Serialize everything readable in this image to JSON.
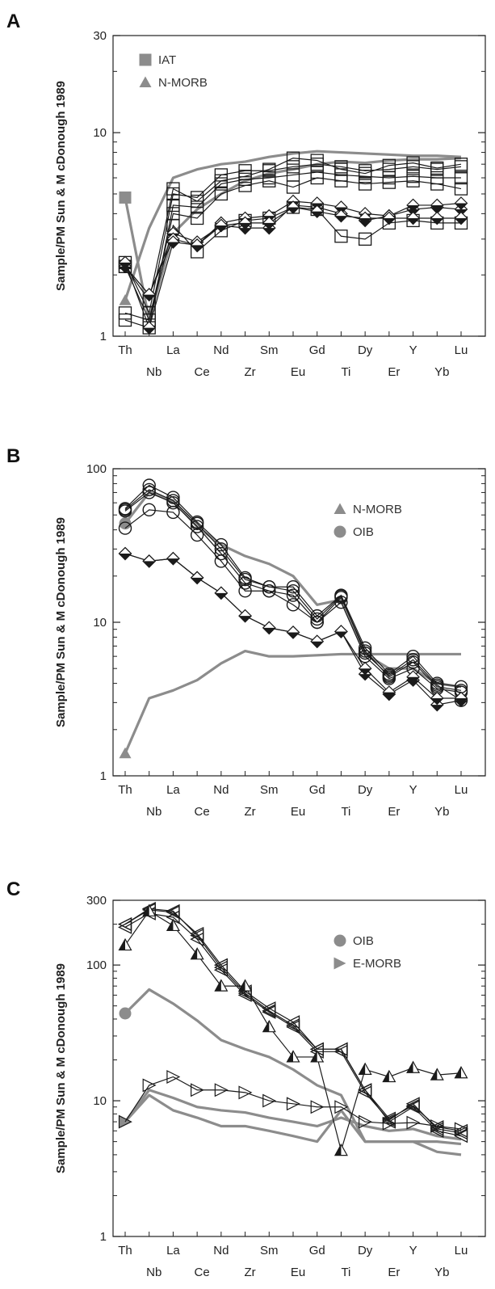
{
  "figure": {
    "panel_letters": [
      "A",
      "B",
      "C"
    ],
    "ylabel": "Sample/PM  Sun &  M cDonough 1989"
  },
  "chart_data": [
    {
      "panel": "A",
      "type": "line",
      "yscale": "log",
      "ylim": [
        1,
        30
      ],
      "yticks": [
        1,
        10,
        30
      ],
      "ytick_labels": [
        "1",
        "10",
        "30"
      ],
      "categories": [
        "Th",
        "Nb",
        "La",
        "Ce",
        "Nd",
        "Zr",
        "Sm",
        "Eu",
        "Gd",
        "Ti",
        "Dy",
        "Er",
        "Y",
        "Yb",
        "Lu"
      ],
      "ylabel": "Sample/PM  Sun &  M cDonough 1989",
      "legend": [
        {
          "label": "IAT",
          "marker": "square"
        },
        {
          "label": "N-MORB",
          "marker": "triangle"
        }
      ],
      "legend_position": "top-left",
      "reference": [
        {
          "name": "IAT",
          "marker": "square",
          "color": "#8c8c8c",
          "values": [
            4.8,
            1.2,
            3.2,
            4.2,
            5.0,
            5.8,
            6.3,
            6.6,
            7.0,
            7.2,
            7.1,
            7.3,
            7.4,
            7.4,
            7.5
          ]
        },
        {
          "name": "N-MORB",
          "marker": "triangle",
          "color": "#8c8c8c",
          "values": [
            1.5,
            3.4,
            6.0,
            6.6,
            7.0,
            7.2,
            7.6,
            7.9,
            8.1,
            8.0,
            7.9,
            7.8,
            7.7,
            7.7,
            7.6
          ]
        }
      ],
      "samples": [
        {
          "marker": "open-square",
          "values": [
            1.2,
            1.1,
            4.4,
            4.3,
            5.6,
            5.9,
            6.0,
            6.2,
            6.4,
            6.2,
            6.1,
            6.0,
            6.1,
            6.0,
            6.0
          ]
        },
        {
          "marker": "open-square",
          "values": [
            2.3,
            1.3,
            5.0,
            4.8,
            6.2,
            6.5,
            6.5,
            6.8,
            7.0,
            6.8,
            6.5,
            6.6,
            6.8,
            6.6,
            6.8
          ]
        },
        {
          "marker": "open-square",
          "values": [
            2.2,
            1.5,
            5.3,
            4.6,
            5.8,
            6.1,
            6.6,
            7.5,
            7.3,
            6.6,
            6.3,
            6.9,
            7.1,
            6.7,
            7.0
          ]
        },
        {
          "marker": "open-square",
          "values": [
            1.3,
            1.2,
            4.0,
            3.8,
            5.0,
            5.5,
            5.8,
            5.4,
            6.0,
            5.8,
            5.6,
            5.7,
            5.8,
            5.6,
            5.3
          ]
        },
        {
          "marker": "open-square",
          "values": [
            2.2,
            1.2,
            3.5,
            2.6,
            3.3,
            3.7,
            3.8,
            4.3,
            4.2,
            3.1,
            3.0,
            3.6,
            3.7,
            3.6,
            3.6
          ]
        },
        {
          "marker": "diamond",
          "values": [
            2.2,
            1.6,
            3.2,
            2.9,
            3.5,
            3.4,
            3.4,
            4.4,
            4.3,
            4.0,
            3.7,
            3.9,
            4.2,
            4.3,
            4.2
          ]
        },
        {
          "marker": "diamond",
          "values": [
            2.2,
            1.6,
            3.0,
            2.8,
            3.6,
            3.8,
            3.9,
            4.6,
            4.5,
            4.3,
            4.0,
            3.9,
            4.4,
            4.4,
            4.5
          ]
        },
        {
          "marker": "diamond",
          "values": [
            2.3,
            1.1,
            2.9,
            2.8,
            3.5,
            3.6,
            3.6,
            4.3,
            4.1,
            3.9,
            3.8,
            3.8,
            3.8,
            3.8,
            3.8
          ]
        }
      ]
    },
    {
      "panel": "B",
      "type": "line",
      "yscale": "log",
      "ylim": [
        1,
        100
      ],
      "yticks": [
        1,
        10,
        100
      ],
      "ytick_labels": [
        "1",
        "10",
        "100"
      ],
      "categories": [
        "Th",
        "Nb",
        "La",
        "Ce",
        "Nd",
        "Zr",
        "Sm",
        "Eu",
        "Gd",
        "Ti",
        "Dy",
        "Er",
        "Y",
        "Yb",
        "Lu"
      ],
      "ylabel": "Sample/PM  Sun &  M cDonough 1989",
      "legend": [
        {
          "label": "N-MORB",
          "marker": "triangle"
        },
        {
          "label": "OIB",
          "marker": "circle"
        }
      ],
      "legend_position": "top-right",
      "reference": [
        {
          "name": "N-MORB",
          "marker": "triangle",
          "color": "#8c8c8c",
          "values": [
            1.4,
            3.2,
            3.6,
            4.2,
            5.4,
            6.5,
            6.0,
            6.0,
            6.1,
            6.2,
            6.2,
            6.2,
            6.2,
            6.2,
            6.2
          ]
        },
        {
          "name": "OIB",
          "marker": "circle",
          "color": "#8c8c8c",
          "values": [
            44,
            70,
            62,
            42,
            32,
            27,
            24,
            20,
            13,
            14,
            6.2,
            5.0,
            5.0,
            4.0,
            3.8
          ]
        }
      ],
      "samples": [
        {
          "marker": "open-circle",
          "values": [
            55,
            78,
            65,
            45,
            32,
            19.5,
            17,
            17,
            11,
            15,
            6.8,
            4.6,
            6.0,
            4.0,
            3.8
          ]
        },
        {
          "marker": "open-circle",
          "values": [
            53,
            70,
            60,
            42,
            28,
            18,
            16,
            15,
            10,
            14.5,
            6.5,
            4.4,
            5.5,
            3.8,
            3.6
          ]
        },
        {
          "marker": "open-circle",
          "values": [
            41,
            54,
            52,
            37,
            25,
            16,
            16,
            13,
            10,
            13.5,
            6.0,
            4.3,
            5.0,
            3.7,
            3.5
          ]
        },
        {
          "marker": "open-circle",
          "values": [
            54,
            73,
            62,
            44,
            30,
            19,
            17,
            16,
            10.5,
            14.8,
            6.3,
            4.5,
            5.7,
            3.9,
            3.1
          ]
        },
        {
          "marker": "diamond",
          "values": [
            28,
            25,
            26,
            19.5,
            15.5,
            11,
            9.2,
            8.6,
            7.5,
            8.7,
            4.6,
            3.4,
            4.2,
            2.9,
            3.1
          ]
        },
        {
          "marker": "diamond",
          "values": [
            28,
            25,
            26,
            19.5,
            15.5,
            11,
            9.2,
            8.6,
            7.5,
            8.7,
            5.0,
            3.5,
            4.4,
            3.2,
            3.2
          ]
        }
      ]
    },
    {
      "panel": "C",
      "type": "line",
      "yscale": "log",
      "ylim": [
        1,
        300
      ],
      "yticks": [
        1,
        10,
        100,
        300
      ],
      "ytick_labels": [
        "1",
        "10",
        "100",
        "300"
      ],
      "categories": [
        "Th",
        "Nb",
        "La",
        "Ce",
        "Nd",
        "Zr",
        "Sm",
        "Eu",
        "Gd",
        "Ti",
        "Dy",
        "Er",
        "Y",
        "Yb",
        "Lu"
      ],
      "ylabel": "Sample/PM  Sun &  M cDonough 1989",
      "legend": [
        {
          "label": "OIB",
          "marker": "circle"
        },
        {
          "label": "E-MORB",
          "marker": "triangle-right"
        }
      ],
      "legend_position": "top-right",
      "reference": [
        {
          "name": "OIB",
          "marker": "circle",
          "color": "#8c8c8c",
          "values": [
            44,
            66,
            52,
            39,
            28,
            24,
            21,
            17,
            13,
            11,
            5.0,
            5.0,
            5.0,
            4.2,
            4.0
          ]
        },
        {
          "name": "E-MORB",
          "marker": "triangle-right",
          "color": "#8c8c8c",
          "values": [
            7.0,
            12,
            10.5,
            9.0,
            8.5,
            8.2,
            7.5,
            7.0,
            6.5,
            7.5,
            6.5,
            6.0,
            6.2,
            5.5,
            5.2
          ]
        },
        {
          "name": "N-MORB",
          "marker": "none",
          "color": "#8c8c8c",
          "values": [
            7.0,
            11,
            8.5,
            7.5,
            6.5,
            6.5,
            6.0,
            5.5,
            5.0,
            8.5,
            5.0,
            5.0,
            5.0,
            5.0,
            4.8
          ]
        }
      ],
      "samples": [
        {
          "marker": "tri-left",
          "values": [
            200,
            255,
            245,
            170,
            100,
            64,
            48,
            38,
            24,
            24,
            12,
            7.0,
            9.0,
            6.0,
            5.5
          ]
        },
        {
          "marker": "tri-left",
          "values": [
            190,
            240,
            225,
            155,
            92,
            60,
            45,
            35,
            23,
            23,
            11.5,
            7.2,
            9.5,
            6.2,
            5.8
          ]
        },
        {
          "marker": "tri-left",
          "values": [
            200,
            260,
            250,
            165,
            96,
            62,
            46,
            36,
            24,
            24,
            12,
            7.4,
            9.2,
            6.4,
            6.0
          ]
        },
        {
          "marker": "tri-up",
          "values": [
            140,
            250,
            195,
            120,
            70,
            70,
            35,
            21,
            21,
            4.3,
            17,
            15,
            17.5,
            15.5,
            16
          ]
        },
        {
          "marker": "tri-right",
          "values": [
            7.0,
            13,
            15,
            12,
            12,
            11.5,
            10,
            9.5,
            9.0,
            9.0,
            7.0,
            6.8,
            6.9,
            6.5,
            6.2
          ]
        }
      ]
    }
  ]
}
